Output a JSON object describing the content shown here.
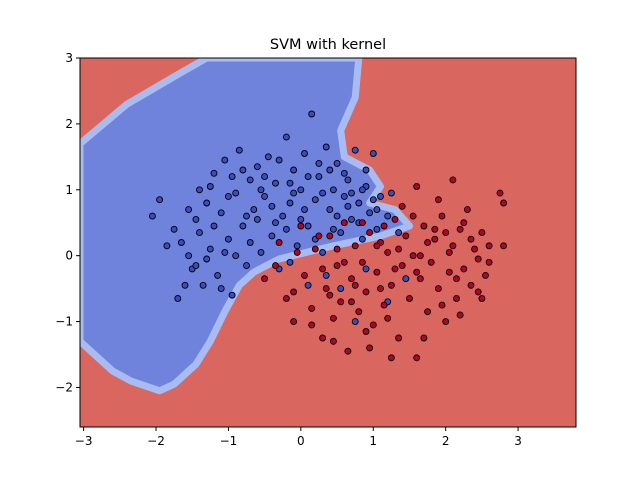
{
  "chart_data": {
    "type": "scatter",
    "title": "SVM with kernel",
    "xlabel": "",
    "ylabel": "",
    "xlim": [
      -3.05,
      3.8
    ],
    "ylim": [
      -2.6,
      3.0
    ],
    "xticks": [
      -3,
      -2,
      -1,
      0,
      1,
      2,
      3
    ],
    "yticks": [
      -2,
      -1,
      0,
      1,
      2,
      3
    ],
    "grid": false,
    "legend": "none",
    "background_regions": {
      "class_0_color": "#7083dc",
      "class_1_color": "#d9675f",
      "class_0_region_outline": [
        [
          -3.05,
          1.7
        ],
        [
          -2.4,
          2.3
        ],
        [
          -1.7,
          2.75
        ],
        [
          -1.3,
          3.0
        ],
        [
          0.8,
          3.0
        ],
        [
          0.75,
          2.4
        ],
        [
          0.55,
          1.9
        ],
        [
          0.6,
          1.5
        ],
        [
          0.95,
          1.3
        ],
        [
          1.1,
          1.05
        ],
        [
          0.95,
          0.8
        ],
        [
          1.3,
          0.7
        ],
        [
          1.5,
          0.45
        ],
        [
          1.1,
          0.3
        ],
        [
          0.45,
          0.15
        ],
        [
          -0.3,
          -0.05
        ],
        [
          -0.65,
          -0.25
        ],
        [
          -0.85,
          -0.45
        ],
        [
          -1.05,
          -0.85
        ],
        [
          -1.25,
          -1.3
        ],
        [
          -1.45,
          -1.65
        ],
        [
          -1.75,
          -1.95
        ],
        [
          -1.95,
          -2.05
        ],
        [
          -2.35,
          -1.9
        ],
        [
          -2.6,
          -1.75
        ],
        [
          -3.05,
          -1.3
        ]
      ]
    },
    "series": [
      {
        "color": "#3b4cc0",
        "points": [
          [
            -2.05,
            0.6
          ],
          [
            -1.95,
            0.85
          ],
          [
            -1.75,
            0.4
          ],
          [
            -1.65,
            0.2
          ],
          [
            -1.55,
            0.0
          ],
          [
            -1.5,
            -0.2
          ],
          [
            -1.45,
            0.55
          ],
          [
            -1.4,
            0.35
          ],
          [
            -1.35,
            -0.45
          ],
          [
            -1.3,
            0.8
          ],
          [
            -1.25,
            0.1
          ],
          [
            -1.2,
            1.25
          ],
          [
            -1.15,
            -0.3
          ],
          [
            -1.1,
            0.65
          ],
          [
            -1.05,
            1.45
          ],
          [
            -1.0,
            0.25
          ],
          [
            -0.95,
            -0.6
          ],
          [
            -0.9,
            0.95
          ],
          [
            -0.85,
            1.6
          ],
          [
            -0.8,
            0.45
          ],
          [
            -0.75,
            -0.15
          ],
          [
            -0.7,
            1.15
          ],
          [
            -0.65,
            0.7
          ],
          [
            -0.6,
            1.35
          ],
          [
            -0.55,
            0.05
          ],
          [
            -0.5,
            0.9
          ],
          [
            -0.45,
            1.5
          ],
          [
            -0.4,
            0.3
          ],
          [
            -0.35,
            1.1
          ],
          [
            -0.3,
            -0.2
          ],
          [
            -0.25,
            0.6
          ],
          [
            -0.2,
            1.8
          ],
          [
            -0.15,
            0.8
          ],
          [
            -0.1,
            1.3
          ],
          [
            -0.05,
            0.15
          ],
          [
            0.0,
            1.0
          ],
          [
            0.05,
            1.55
          ],
          [
            0.1,
            0.45
          ],
          [
            0.15,
            2.15
          ],
          [
            0.2,
            0.85
          ],
          [
            0.25,
            1.2
          ],
          [
            0.3,
            0.05
          ],
          [
            0.35,
            1.65
          ],
          [
            0.4,
            0.7
          ],
          [
            0.45,
            1.0
          ],
          [
            0.5,
            1.4
          ],
          [
            0.55,
            0.35
          ],
          [
            0.6,
            0.9
          ],
          [
            0.65,
            1.15
          ],
          [
            0.7,
            0.55
          ],
          [
            0.75,
            1.6
          ],
          [
            0.8,
            0.8
          ],
          [
            0.85,
            0.25
          ],
          [
            0.9,
            1.05
          ],
          [
            0.95,
            0.65
          ],
          [
            1.0,
            1.55
          ],
          [
            1.05,
            0.4
          ],
          [
            1.1,
            0.9
          ],
          [
            1.2,
            0.6
          ],
          [
            1.35,
            0.35
          ],
          [
            -1.85,
            0.15
          ],
          [
            -1.6,
            -0.45
          ],
          [
            -1.55,
            0.7
          ],
          [
            -1.4,
            1.0
          ],
          [
            -1.3,
            -0.05
          ],
          [
            -1.2,
            0.45
          ],
          [
            -1.1,
            -0.5
          ],
          [
            -1.0,
            0.9
          ],
          [
            -0.9,
            0.0
          ],
          [
            -0.8,
            1.3
          ],
          [
            -0.7,
            0.2
          ],
          [
            -0.6,
            0.55
          ],
          [
            -0.5,
            1.2
          ],
          [
            -0.4,
            0.75
          ],
          [
            -0.3,
            1.45
          ],
          [
            -0.2,
            0.4
          ],
          [
            -0.1,
            0.95
          ],
          [
            0.0,
            0.55
          ],
          [
            0.1,
            1.2
          ],
          [
            0.2,
            0.25
          ],
          [
            0.3,
            0.95
          ],
          [
            0.4,
            1.3
          ],
          [
            0.5,
            0.6
          ],
          [
            0.6,
            1.25
          ],
          [
            0.7,
            0.95
          ],
          [
            0.8,
            0.5
          ],
          [
            0.9,
            1.3
          ],
          [
            1.0,
            0.85
          ],
          [
            -1.7,
            -0.65
          ],
          [
            -1.45,
            -0.15
          ],
          [
            -1.25,
            1.05
          ],
          [
            -1.05,
            0.05
          ],
          [
            -0.95,
            1.2
          ],
          [
            -0.75,
            0.6
          ],
          [
            -0.55,
            1.0
          ],
          [
            -0.35,
            0.5
          ],
          [
            -0.15,
            1.1
          ],
          [
            0.05,
            0.7
          ],
          [
            0.25,
            1.4
          ],
          [
            0.45,
            0.4
          ],
          [
            0.65,
            0.75
          ],
          [
            0.85,
            1.0
          ],
          [
            1.05,
            0.7
          ],
          [
            1.25,
            0.95
          ],
          [
            0.35,
            -0.3
          ],
          [
            0.55,
            -0.5
          ],
          [
            0.75,
            -1.0
          ],
          [
            0.9,
            -0.2
          ],
          [
            1.2,
            -0.7
          ],
          [
            1.45,
            -0.35
          ],
          [
            0.1,
            -0.45
          ],
          [
            -0.15,
            -0.1
          ]
        ]
      },
      {
        "color": "#b40426",
        "points": [
          [
            -0.5,
            -0.35
          ],
          [
            -0.3,
            0.2
          ],
          [
            -0.2,
            -0.65
          ],
          [
            -0.1,
            -1.0
          ],
          [
            0.0,
            0.45
          ],
          [
            0.05,
            -0.3
          ],
          [
            0.15,
            -0.8
          ],
          [
            0.2,
            0.1
          ],
          [
            0.3,
            -1.25
          ],
          [
            0.35,
            -0.5
          ],
          [
            0.4,
            0.3
          ],
          [
            0.45,
            -0.95
          ],
          [
            0.5,
            -0.15
          ],
          [
            0.55,
            -0.7
          ],
          [
            0.6,
            0.5
          ],
          [
            0.65,
            -1.45
          ],
          [
            0.7,
            -0.35
          ],
          [
            0.75,
            0.15
          ],
          [
            0.8,
            -0.85
          ],
          [
            0.85,
            -0.1
          ],
          [
            0.9,
            -0.55
          ],
          [
            0.95,
            0.35
          ],
          [
            1.0,
            -1.05
          ],
          [
            1.05,
            -0.25
          ],
          [
            1.1,
            0.2
          ],
          [
            1.15,
            -0.75
          ],
          [
            1.2,
            0.05
          ],
          [
            1.25,
            -0.45
          ],
          [
            1.3,
            0.55
          ],
          [
            1.35,
            -1.25
          ],
          [
            1.4,
            -0.15
          ],
          [
            1.45,
            0.3
          ],
          [
            1.5,
            -0.65
          ],
          [
            1.55,
            0.0
          ],
          [
            1.6,
            -1.55
          ],
          [
            1.65,
            -0.35
          ],
          [
            1.7,
            0.45
          ],
          [
            1.75,
            -0.85
          ],
          [
            1.8,
            -0.1
          ],
          [
            1.85,
            0.25
          ],
          [
            1.9,
            -0.5
          ],
          [
            1.95,
            0.6
          ],
          [
            2.0,
            -1.0
          ],
          [
            2.05,
            -0.25
          ],
          [
            2.1,
            0.15
          ],
          [
            2.15,
            -0.65
          ],
          [
            2.2,
            0.4
          ],
          [
            2.25,
            -0.2
          ],
          [
            2.3,
            0.7
          ],
          [
            2.35,
            -0.45
          ],
          [
            2.4,
            0.1
          ],
          [
            2.45,
            -0.05
          ],
          [
            2.5,
            0.35
          ],
          [
            2.55,
            -0.3
          ],
          [
            2.6,
            0.15
          ],
          [
            2.8,
            0.8
          ],
          [
            2.8,
            0.15
          ],
          [
            2.75,
            0.95
          ],
          [
            2.1,
            1.15
          ],
          [
            1.6,
            1.05
          ],
          [
            0.45,
            -1.3
          ],
          [
            0.95,
            -1.4
          ],
          [
            1.7,
            -1.25
          ],
          [
            1.25,
            -1.55
          ],
          [
            0.15,
            -1.05
          ],
          [
            -0.1,
            -0.55
          ],
          [
            0.25,
            0.3
          ],
          [
            0.6,
            -0.1
          ],
          [
            0.85,
            0.5
          ],
          [
            1.1,
            -0.5
          ],
          [
            1.35,
            0.1
          ],
          [
            1.6,
            -0.25
          ],
          [
            1.85,
            0.4
          ],
          [
            2.05,
            0.05
          ],
          [
            2.25,
            0.5
          ],
          [
            2.45,
            -0.55
          ],
          [
            1.4,
            0.75
          ],
          [
            1.9,
            0.85
          ],
          [
            2.2,
            -0.9
          ],
          [
            0.7,
            -0.7
          ],
          [
            0.3,
            -0.2
          ],
          [
            1.05,
            0.15
          ],
          [
            1.55,
            0.6
          ],
          [
            2.35,
            0.25
          ],
          [
            2.6,
            -0.1
          ],
          [
            0.5,
            0.1
          ],
          [
            1.2,
            -0.95
          ],
          [
            1.75,
            0.2
          ],
          [
            2.0,
            0.35
          ],
          [
            2.15,
            -0.35
          ],
          [
            -0.35,
            -0.15
          ],
          [
            -0.05,
            0.05
          ],
          [
            0.75,
            -0.45
          ],
          [
            1.3,
            -0.2
          ],
          [
            1.95,
            -0.75
          ],
          [
            2.5,
            -0.65
          ],
          [
            1.15,
            0.45
          ],
          [
            0.4,
            -0.6
          ],
          [
            0.9,
            -1.15
          ],
          [
            1.65,
            0.0
          ]
        ]
      }
    ]
  }
}
